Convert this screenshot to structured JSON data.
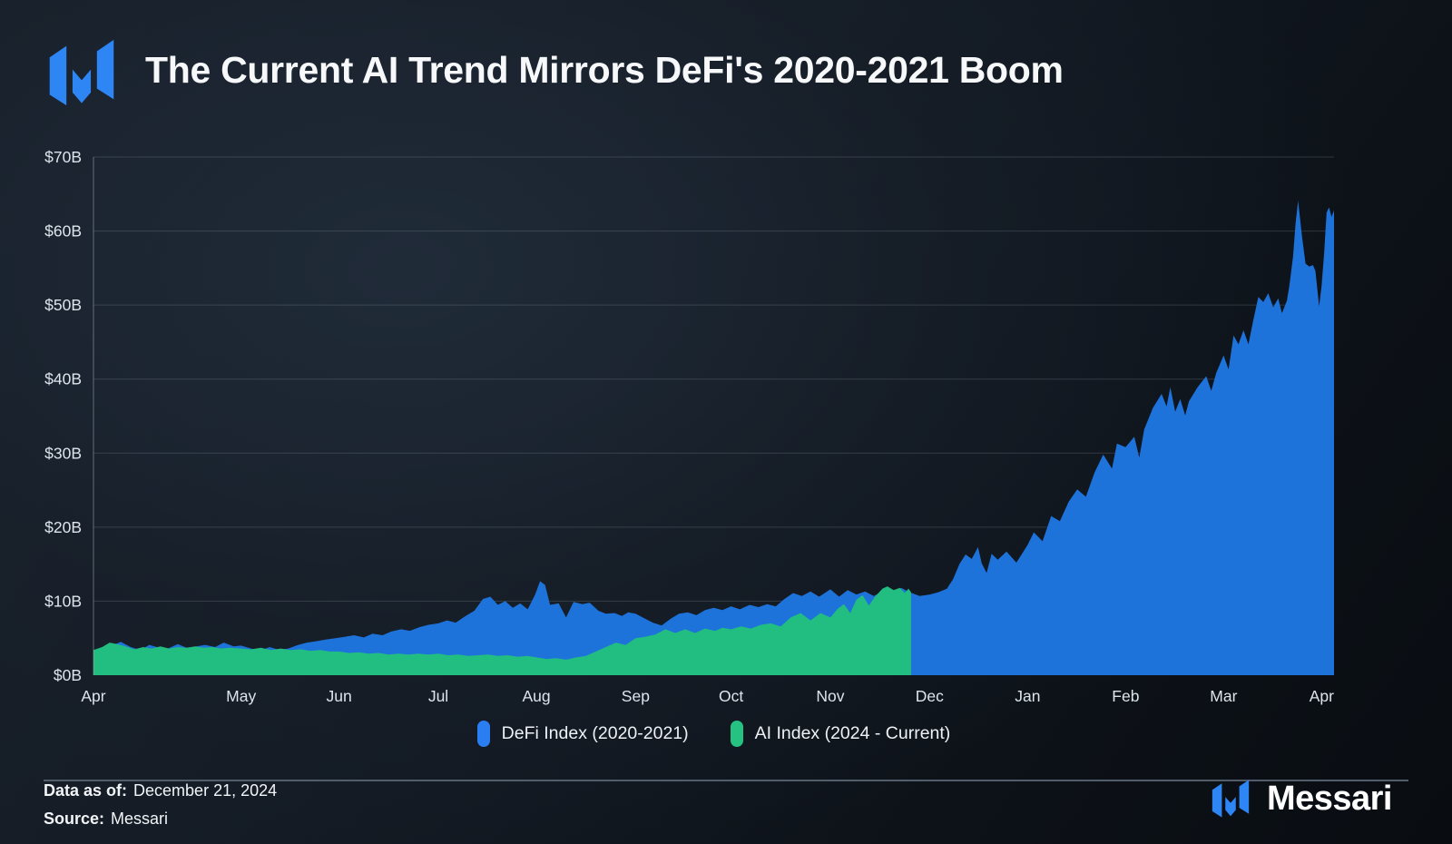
{
  "header": {
    "title": "The Current AI Trend Mirrors DeFi's 2020-2021 Boom",
    "logo": "messari-m-mark"
  },
  "chart_data": {
    "type": "area",
    "title": "The Current AI Trend Mirrors DeFi's 2020-2021 Boom",
    "xlabel": "",
    "ylabel": "",
    "ylim": [
      0,
      70
    ],
    "grid": "horizontal",
    "legend_position": "bottom-center",
    "y_ticks": [
      {
        "label": "$0B",
        "value": 0
      },
      {
        "label": "$10B",
        "value": 10
      },
      {
        "label": "$20B",
        "value": 20
      },
      {
        "label": "$30B",
        "value": 30
      },
      {
        "label": "$40B",
        "value": 40
      },
      {
        "label": "$50B",
        "value": 50
      },
      {
        "label": "$60B",
        "value": 60
      },
      {
        "label": "$70B",
        "value": 70
      }
    ],
    "x_ticks": [
      {
        "label": "Apr",
        "pos": 0.0
      },
      {
        "label": "May",
        "pos": 0.119
      },
      {
        "label": "Jun",
        "pos": 0.198
      },
      {
        "label": "Jul",
        "pos": 0.278
      },
      {
        "label": "Aug",
        "pos": 0.357
      },
      {
        "label": "Sep",
        "pos": 0.437
      },
      {
        "label": "Oct",
        "pos": 0.514
      },
      {
        "label": "Nov",
        "pos": 0.594
      },
      {
        "label": "Dec",
        "pos": 0.674
      },
      {
        "label": "Jan",
        "pos": 0.753
      },
      {
        "label": "Feb",
        "pos": 0.832
      },
      {
        "label": "Mar",
        "pos": 0.911
      },
      {
        "label": "Apr",
        "pos": 0.99
      }
    ],
    "series": [
      {
        "name": "DeFi Index (2020-2021)",
        "color": "#1e73db",
        "legend_color": "#2b7ef2",
        "unit": "$B",
        "points": [
          [
            0.0,
            3.3
          ],
          [
            0.008,
            3.6
          ],
          [
            0.015,
            4.0
          ],
          [
            0.022,
            4.5
          ],
          [
            0.03,
            3.8
          ],
          [
            0.038,
            3.4
          ],
          [
            0.045,
            4.1
          ],
          [
            0.053,
            3.7
          ],
          [
            0.06,
            3.6
          ],
          [
            0.068,
            4.2
          ],
          [
            0.075,
            3.7
          ],
          [
            0.083,
            3.9
          ],
          [
            0.09,
            4.1
          ],
          [
            0.098,
            3.8
          ],
          [
            0.105,
            4.4
          ],
          [
            0.113,
            3.9
          ],
          [
            0.119,
            4.0
          ],
          [
            0.127,
            3.6
          ],
          [
            0.134,
            3.3
          ],
          [
            0.142,
            3.8
          ],
          [
            0.15,
            3.4
          ],
          [
            0.157,
            3.6
          ],
          [
            0.165,
            4.1
          ],
          [
            0.172,
            4.4
          ],
          [
            0.18,
            4.6
          ],
          [
            0.187,
            4.8
          ],
          [
            0.195,
            5.0
          ],
          [
            0.203,
            5.2
          ],
          [
            0.21,
            5.4
          ],
          [
            0.218,
            5.1
          ],
          [
            0.225,
            5.6
          ],
          [
            0.233,
            5.4
          ],
          [
            0.24,
            5.9
          ],
          [
            0.248,
            6.2
          ],
          [
            0.255,
            6.0
          ],
          [
            0.263,
            6.5
          ],
          [
            0.27,
            6.8
          ],
          [
            0.278,
            7.0
          ],
          [
            0.285,
            7.4
          ],
          [
            0.292,
            7.1
          ],
          [
            0.3,
            8.0
          ],
          [
            0.307,
            8.7
          ],
          [
            0.314,
            10.3
          ],
          [
            0.32,
            10.6
          ],
          [
            0.326,
            9.5
          ],
          [
            0.332,
            10.0
          ],
          [
            0.338,
            9.1
          ],
          [
            0.344,
            9.7
          ],
          [
            0.35,
            8.9
          ],
          [
            0.356,
            10.9
          ],
          [
            0.36,
            12.7
          ],
          [
            0.364,
            12.2
          ],
          [
            0.368,
            9.5
          ],
          [
            0.375,
            9.7
          ],
          [
            0.381,
            7.8
          ],
          [
            0.387,
            9.9
          ],
          [
            0.394,
            9.6
          ],
          [
            0.4,
            9.8
          ],
          [
            0.407,
            8.7
          ],
          [
            0.413,
            8.3
          ],
          [
            0.42,
            8.4
          ],
          [
            0.426,
            8.0
          ],
          [
            0.431,
            8.5
          ],
          [
            0.437,
            8.3
          ],
          [
            0.444,
            7.7
          ],
          [
            0.451,
            7.1
          ],
          [
            0.458,
            6.7
          ],
          [
            0.465,
            7.6
          ],
          [
            0.472,
            8.3
          ],
          [
            0.479,
            8.5
          ],
          [
            0.486,
            8.1
          ],
          [
            0.493,
            8.8
          ],
          [
            0.5,
            9.1
          ],
          [
            0.507,
            8.8
          ],
          [
            0.514,
            9.3
          ],
          [
            0.521,
            8.9
          ],
          [
            0.529,
            9.5
          ],
          [
            0.536,
            9.2
          ],
          [
            0.543,
            9.6
          ],
          [
            0.55,
            9.3
          ],
          [
            0.557,
            10.3
          ],
          [
            0.564,
            11.1
          ],
          [
            0.571,
            10.7
          ],
          [
            0.578,
            11.3
          ],
          [
            0.585,
            10.6
          ],
          [
            0.594,
            11.6
          ],
          [
            0.601,
            10.6
          ],
          [
            0.608,
            11.5
          ],
          [
            0.615,
            10.9
          ],
          [
            0.622,
            11.3
          ],
          [
            0.629,
            10.7
          ],
          [
            0.636,
            11.3
          ],
          [
            0.643,
            10.7
          ],
          [
            0.651,
            11.8
          ],
          [
            0.658,
            11.2
          ],
          [
            0.666,
            10.7
          ],
          [
            0.674,
            10.9
          ],
          [
            0.681,
            11.2
          ],
          [
            0.688,
            11.7
          ],
          [
            0.693,
            13.0
          ],
          [
            0.698,
            15.0
          ],
          [
            0.703,
            16.3
          ],
          [
            0.708,
            15.7
          ],
          [
            0.713,
            17.3
          ],
          [
            0.716,
            15.1
          ],
          [
            0.72,
            13.8
          ],
          [
            0.724,
            16.4
          ],
          [
            0.729,
            15.6
          ],
          [
            0.736,
            16.7
          ],
          [
            0.744,
            15.2
          ],
          [
            0.753,
            17.6
          ],
          [
            0.758,
            19.3
          ],
          [
            0.765,
            18.1
          ],
          [
            0.772,
            21.5
          ],
          [
            0.779,
            20.8
          ],
          [
            0.786,
            23.4
          ],
          [
            0.793,
            25.1
          ],
          [
            0.8,
            24.1
          ],
          [
            0.807,
            27.4
          ],
          [
            0.814,
            29.8
          ],
          [
            0.821,
            27.9
          ],
          [
            0.825,
            31.3
          ],
          [
            0.832,
            30.8
          ],
          [
            0.839,
            32.2
          ],
          [
            0.843,
            29.4
          ],
          [
            0.847,
            33.2
          ],
          [
            0.854,
            36.1
          ],
          [
            0.861,
            38.0
          ],
          [
            0.865,
            36.3
          ],
          [
            0.868,
            38.9
          ],
          [
            0.872,
            35.6
          ],
          [
            0.876,
            37.3
          ],
          [
            0.88,
            35.1
          ],
          [
            0.883,
            37.0
          ],
          [
            0.89,
            38.9
          ],
          [
            0.897,
            40.4
          ],
          [
            0.901,
            38.4
          ],
          [
            0.905,
            40.8
          ],
          [
            0.911,
            43.2
          ],
          [
            0.915,
            41.3
          ],
          [
            0.919,
            45.9
          ],
          [
            0.923,
            44.7
          ],
          [
            0.927,
            46.6
          ],
          [
            0.931,
            44.7
          ],
          [
            0.935,
            48.0
          ],
          [
            0.939,
            51.1
          ],
          [
            0.943,
            50.4
          ],
          [
            0.947,
            51.6
          ],
          [
            0.951,
            49.7
          ],
          [
            0.955,
            50.9
          ],
          [
            0.958,
            48.9
          ],
          [
            0.962,
            50.6
          ],
          [
            0.964,
            52.6
          ],
          [
            0.967,
            56.6
          ],
          [
            0.969,
            61.0
          ],
          [
            0.971,
            64.1
          ],
          [
            0.974,
            59.5
          ],
          [
            0.977,
            55.6
          ],
          [
            0.98,
            55.2
          ],
          [
            0.983,
            55.4
          ],
          [
            0.985,
            54.6
          ],
          [
            0.988,
            49.8
          ],
          [
            0.99,
            52.6
          ],
          [
            0.992,
            57.0
          ],
          [
            0.994,
            62.5
          ],
          [
            0.996,
            63.2
          ],
          [
            0.998,
            61.9
          ],
          [
            1.0,
            62.8
          ]
        ]
      },
      {
        "name": "AI Index (2024 - Current)",
        "color": "#22bd80",
        "legend_color": "#25c282",
        "unit": "$B",
        "points": [
          [
            0.0,
            3.4
          ],
          [
            0.007,
            3.8
          ],
          [
            0.013,
            4.4
          ],
          [
            0.019,
            4.2
          ],
          [
            0.026,
            3.9
          ],
          [
            0.033,
            3.5
          ],
          [
            0.04,
            3.8
          ],
          [
            0.047,
            3.6
          ],
          [
            0.054,
            3.9
          ],
          [
            0.061,
            3.6
          ],
          [
            0.068,
            3.8
          ],
          [
            0.075,
            3.7
          ],
          [
            0.082,
            3.9
          ],
          [
            0.089,
            3.7
          ],
          [
            0.096,
            3.8
          ],
          [
            0.103,
            3.6
          ],
          [
            0.11,
            3.7
          ],
          [
            0.119,
            3.6
          ],
          [
            0.127,
            3.5
          ],
          [
            0.135,
            3.7
          ],
          [
            0.143,
            3.4
          ],
          [
            0.151,
            3.6
          ],
          [
            0.159,
            3.4
          ],
          [
            0.167,
            3.5
          ],
          [
            0.175,
            3.3
          ],
          [
            0.183,
            3.4
          ],
          [
            0.19,
            3.2
          ],
          [
            0.198,
            3.2
          ],
          [
            0.206,
            3.0
          ],
          [
            0.214,
            3.1
          ],
          [
            0.222,
            2.9
          ],
          [
            0.23,
            3.0
          ],
          [
            0.238,
            2.8
          ],
          [
            0.246,
            2.9
          ],
          [
            0.254,
            2.8
          ],
          [
            0.262,
            2.9
          ],
          [
            0.27,
            2.8
          ],
          [
            0.278,
            2.9
          ],
          [
            0.286,
            2.7
          ],
          [
            0.294,
            2.8
          ],
          [
            0.302,
            2.6
          ],
          [
            0.31,
            2.7
          ],
          [
            0.318,
            2.8
          ],
          [
            0.326,
            2.6
          ],
          [
            0.334,
            2.7
          ],
          [
            0.342,
            2.5
          ],
          [
            0.35,
            2.6
          ],
          [
            0.357,
            2.4
          ],
          [
            0.365,
            2.2
          ],
          [
            0.373,
            2.3
          ],
          [
            0.381,
            2.1
          ],
          [
            0.389,
            2.4
          ],
          [
            0.397,
            2.6
          ],
          [
            0.405,
            3.2
          ],
          [
            0.413,
            3.8
          ],
          [
            0.421,
            4.4
          ],
          [
            0.429,
            4.1
          ],
          [
            0.437,
            5.0
          ],
          [
            0.445,
            5.2
          ],
          [
            0.453,
            5.5
          ],
          [
            0.461,
            6.2
          ],
          [
            0.469,
            5.7
          ],
          [
            0.477,
            6.2
          ],
          [
            0.485,
            5.7
          ],
          [
            0.493,
            6.3
          ],
          [
            0.501,
            6.0
          ],
          [
            0.507,
            6.4
          ],
          [
            0.514,
            6.2
          ],
          [
            0.522,
            6.6
          ],
          [
            0.53,
            6.3
          ],
          [
            0.538,
            6.8
          ],
          [
            0.546,
            7.0
          ],
          [
            0.554,
            6.6
          ],
          [
            0.562,
            7.8
          ],
          [
            0.57,
            8.4
          ],
          [
            0.578,
            7.4
          ],
          [
            0.586,
            8.4
          ],
          [
            0.594,
            7.8
          ],
          [
            0.6,
            9.0
          ],
          [
            0.605,
            9.6
          ],
          [
            0.61,
            8.4
          ],
          [
            0.615,
            10.2
          ],
          [
            0.62,
            10.8
          ],
          [
            0.625,
            9.4
          ],
          [
            0.63,
            10.6
          ],
          [
            0.636,
            11.7
          ],
          [
            0.64,
            12.0
          ],
          [
            0.645,
            11.5
          ],
          [
            0.65,
            11.8
          ],
          [
            0.654,
            11.1
          ],
          [
            0.657,
            11.7
          ],
          [
            0.659,
            11.2
          ]
        ]
      }
    ]
  },
  "footer": {
    "data_as_of_label": "Data as of:",
    "data_as_of_value": "December 21, 2024",
    "source_label": "Source:",
    "source_value": "Messari"
  },
  "brand": {
    "wordmark": "Messari"
  },
  "colors": {
    "defi_blue": "#1e73db",
    "ai_green": "#22bd80",
    "logo_blue": "#2e86f5",
    "background_dark": "#10161e",
    "gridline": "#39434f"
  }
}
